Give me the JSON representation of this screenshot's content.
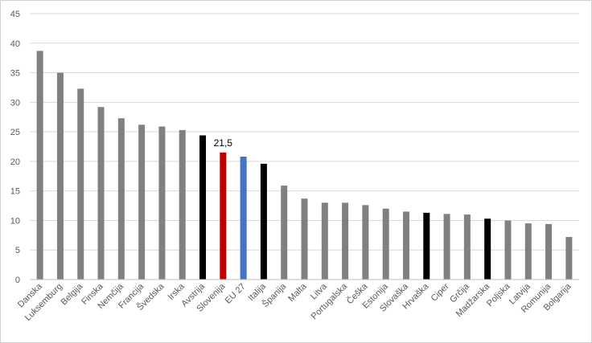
{
  "chart_data": {
    "type": "bar",
    "categories": [
      "Danska",
      "Luksemburg",
      "Belgija",
      "Finska",
      "Nemčija",
      "Francija",
      "Švedska",
      "Irska",
      "Avstrija",
      "Slovenija",
      "EU 27",
      "Italija",
      "Španija",
      "Malta",
      "Litva",
      "Portugalska",
      "Češka",
      "Estonija",
      "Slovaška",
      "Hrvaška",
      "Ciper",
      "Grčija",
      "Madžarska",
      "Poljska",
      "Latvija",
      "Romunija",
      "Bolgarija"
    ],
    "values": [
      38.7,
      35.0,
      32.3,
      29.2,
      27.3,
      26.2,
      25.9,
      25.3,
      24.4,
      21.5,
      20.8,
      19.6,
      15.9,
      13.7,
      13.0,
      13.0,
      12.6,
      12.0,
      11.5,
      11.3,
      11.1,
      11.0,
      10.3,
      10.0,
      9.5,
      9.4,
      7.2
    ],
    "colors": [
      "#808080",
      "#808080",
      "#808080",
      "#808080",
      "#808080",
      "#808080",
      "#808080",
      "#808080",
      "#000000",
      "#c00000",
      "#4472c4",
      "#000000",
      "#808080",
      "#808080",
      "#808080",
      "#808080",
      "#808080",
      "#808080",
      "#808080",
      "#000000",
      "#808080",
      "#808080",
      "#000000",
      "#808080",
      "#808080",
      "#808080",
      "#808080"
    ],
    "data_labels": [
      {
        "index": 9,
        "text": "21,5"
      }
    ],
    "yticks": [
      "0",
      "5",
      "10",
      "15",
      "20",
      "25",
      "30",
      "35",
      "40",
      "45"
    ],
    "ylim": [
      0,
      45
    ],
    "grid": true,
    "title": "",
    "xlabel": "",
    "ylabel": ""
  }
}
